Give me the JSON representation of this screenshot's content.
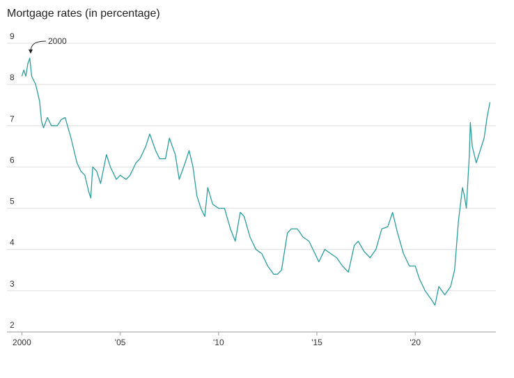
{
  "chart_data": {
    "type": "line",
    "title": "Mortgage rates (in percentage)",
    "annotation": "2000",
    "x": [
      2000.0,
      2000.1,
      2000.2,
      2000.3,
      2000.4,
      2000.5,
      2000.7,
      2000.9,
      2001.0,
      2001.1,
      2001.3,
      2001.5,
      2001.8,
      2002.0,
      2002.2,
      2002.5,
      2002.8,
      2003.0,
      2003.2,
      2003.4,
      2003.5,
      2003.6,
      2003.8,
      2004.0,
      2004.3,
      2004.5,
      2004.8,
      2005.0,
      2005.3,
      2005.5,
      2005.8,
      2006.0,
      2006.3,
      2006.5,
      2006.8,
      2007.0,
      2007.3,
      2007.5,
      2007.8,
      2008.0,
      2008.3,
      2008.5,
      2008.7,
      2008.9,
      2009.1,
      2009.3,
      2009.45,
      2009.7,
      2010.0,
      2010.3,
      2010.6,
      2010.85,
      2011.1,
      2011.3,
      2011.6,
      2011.9,
      2012.2,
      2012.5,
      2012.8,
      2013.0,
      2013.2,
      2013.5,
      2013.7,
      2014.0,
      2014.3,
      2014.6,
      2014.9,
      2015.1,
      2015.4,
      2015.7,
      2016.0,
      2016.3,
      2016.6,
      2016.9,
      2017.1,
      2017.4,
      2017.7,
      2018.0,
      2018.3,
      2018.6,
      2018.85,
      2019.1,
      2019.4,
      2019.7,
      2020.0,
      2020.2,
      2020.5,
      2020.8,
      2021.0,
      2021.2,
      2021.5,
      2021.8,
      2022.0,
      2022.2,
      2022.4,
      2022.5,
      2022.6,
      2022.75,
      2022.8,
      2022.9,
      2023.1,
      2023.3,
      2023.5,
      2023.65,
      2023.8
    ],
    "series": [
      {
        "name": "Mortgage rate",
        "color": "#2a9d9c",
        "values": [
          8.2,
          8.35,
          8.2,
          8.5,
          8.64,
          8.2,
          8.0,
          7.6,
          7.1,
          6.95,
          7.2,
          7.0,
          7.0,
          7.15,
          7.2,
          6.7,
          6.1,
          5.9,
          5.8,
          5.4,
          5.25,
          6.0,
          5.9,
          5.6,
          6.3,
          6.0,
          5.7,
          5.8,
          5.7,
          5.8,
          6.1,
          6.2,
          6.5,
          6.8,
          6.4,
          6.2,
          6.2,
          6.7,
          6.3,
          5.7,
          6.1,
          6.4,
          6.0,
          5.3,
          5.0,
          4.8,
          5.5,
          5.1,
          5.0,
          5.0,
          4.5,
          4.2,
          4.9,
          4.8,
          4.3,
          4.0,
          3.9,
          3.6,
          3.4,
          3.4,
          3.5,
          4.4,
          4.5,
          4.5,
          4.3,
          4.2,
          3.9,
          3.7,
          4.0,
          3.9,
          3.8,
          3.6,
          3.45,
          4.1,
          4.2,
          3.95,
          3.8,
          4.0,
          4.5,
          4.55,
          4.9,
          4.4,
          3.9,
          3.6,
          3.6,
          3.3,
          3.0,
          2.8,
          2.65,
          3.1,
          2.9,
          3.1,
          3.5,
          4.7,
          5.5,
          5.3,
          5.0,
          6.3,
          7.08,
          6.5,
          6.1,
          6.4,
          6.7,
          7.2,
          7.57
        ]
      }
    ],
    "xlim": [
      1999.95,
      2024.1
    ],
    "xticks": [
      2000,
      {
        "value": 2005,
        "label": "'05"
      },
      {
        "value": 2010,
        "label": "'10"
      },
      {
        "value": 2015,
        "label": "'15"
      },
      {
        "value": 2020,
        "label": "'20"
      }
    ],
    "ylim": [
      2,
      9
    ],
    "yticks": [
      2,
      3,
      4,
      5,
      6,
      7,
      8,
      9
    ],
    "grid": true
  }
}
